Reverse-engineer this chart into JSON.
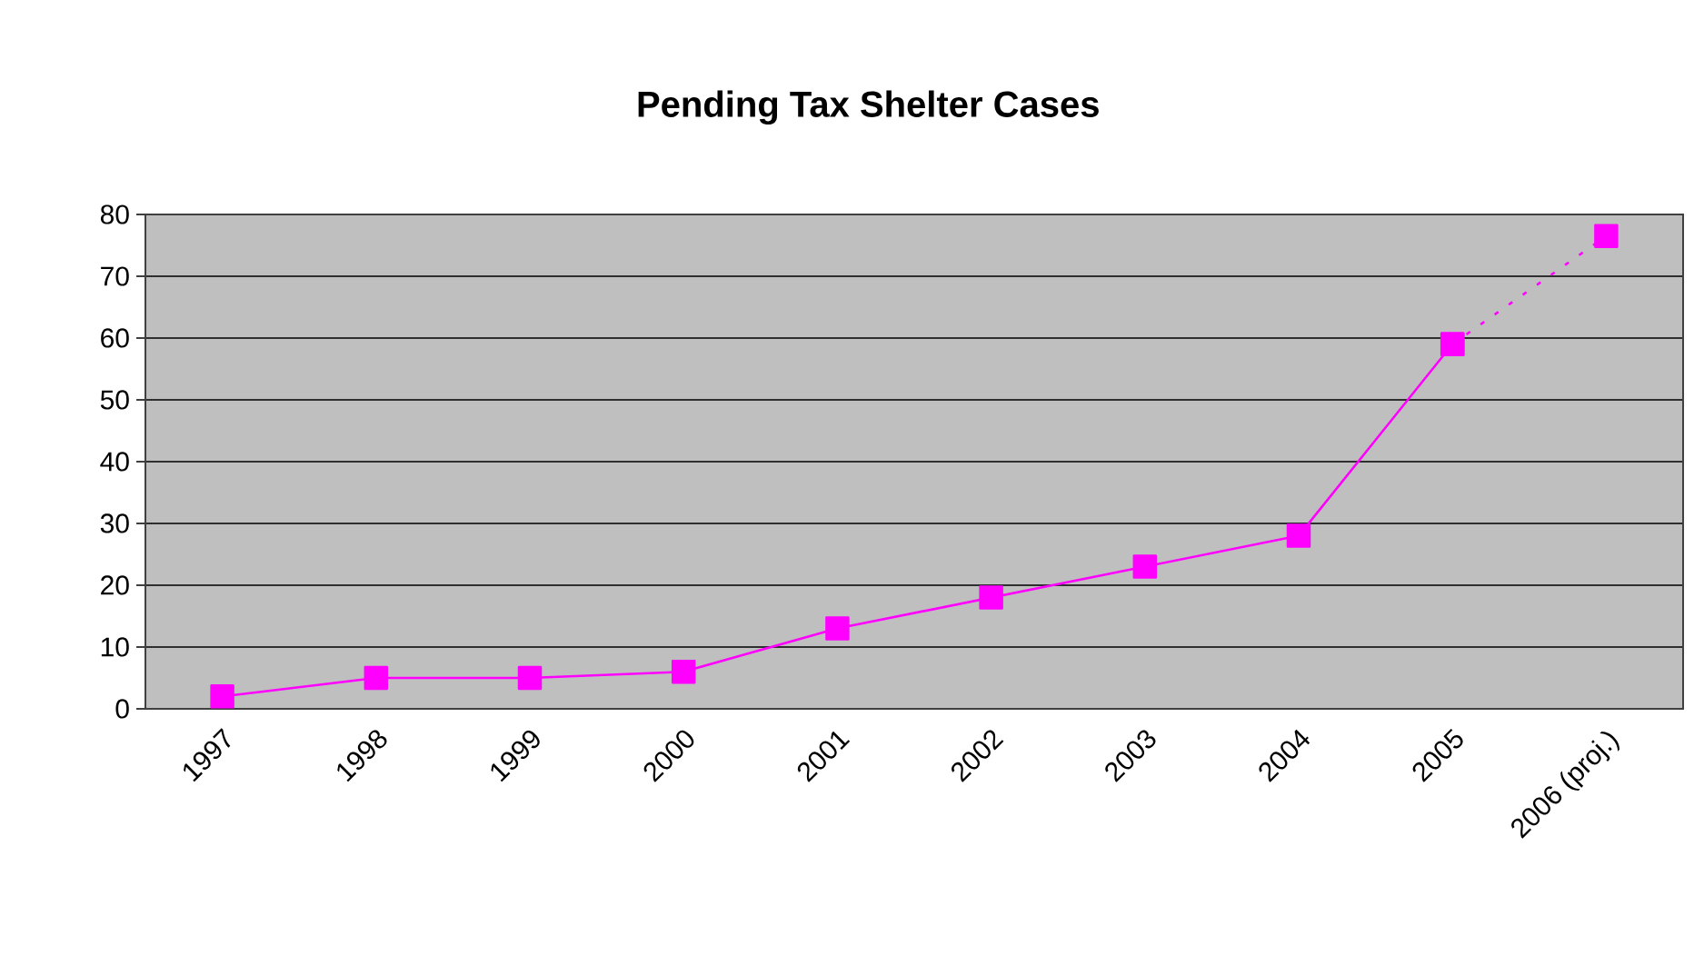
{
  "chart_data": {
    "type": "line",
    "title": "Pending Tax Shelter Cases",
    "categories": [
      "1997",
      "1998",
      "1999",
      "2000",
      "2001",
      "2002",
      "2003",
      "2004",
      "2005",
      "2006 (proj.)"
    ],
    "series": [
      {
        "color": "#ff00ff",
        "line_style": "solid",
        "marker": "square",
        "values": [
          2,
          5,
          5,
          6,
          13,
          18,
          23,
          28,
          59,
          null
        ]
      },
      {
        "color": "#ff00ff",
        "line_style": "dotted",
        "marker": "square",
        "values": [
          null,
          null,
          null,
          null,
          null,
          null,
          null,
          null,
          59,
          76.5
        ]
      }
    ],
    "ylim": [
      0,
      80
    ],
    "yticks": [
      0,
      10,
      20,
      30,
      40,
      50,
      60,
      70,
      80
    ],
    "grid": "y"
  }
}
